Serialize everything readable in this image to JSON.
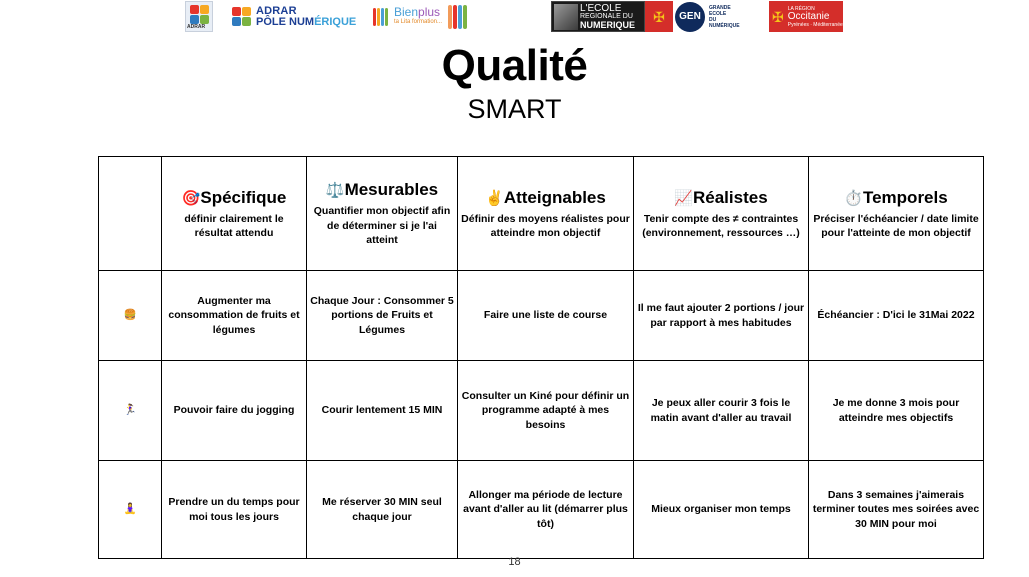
{
  "logos": {
    "adrar_small": "ADRAR",
    "pole_line1": "ADRAR",
    "pole_line2a": "PÔLE NUM",
    "pole_line2b": "ÉRIQUE",
    "bien_a": "Bien",
    "bien_b": "plus",
    "bien_sub": "ta Lita formation...",
    "ecole_l1": "L'ECOLE",
    "ecole_l2": "REGIONALE DU",
    "ecole_l3": "NUMERIQUE",
    "gen_mark": "GEN",
    "gen_l1": "GRANDE",
    "gen_l2": "ECOLE",
    "gen_l3": "DU",
    "gen_l4": "NUMÉRIQUE",
    "occ_l1": "LA RÉGION",
    "occ_l2": "Occitanie",
    "occ_l3": "Pyrénées · Méditerranée"
  },
  "title": "Qualité",
  "subtitle": "SMART",
  "page_number": "18",
  "table": {
    "headers": [
      {
        "emoji": "🎯",
        "title": "Spécifique",
        "desc": "définir clairement le résultat attendu"
      },
      {
        "emoji": "⚖️",
        "title": "Mesurables",
        "desc": "Quantifier mon objectif afin de déterminer si je l'ai atteint"
      },
      {
        "emoji": "✌️",
        "title": "Atteignables",
        "desc": "Définir des moyens réalistes pour atteindre mon objectif"
      },
      {
        "emoji": "📈",
        "title": "Réalistes",
        "desc": "Tenir compte des ≠ contraintes (environnement, ressources …)"
      },
      {
        "emoji": "⏱️",
        "title": "Temporels",
        "desc": "Préciser l'échéancier / date limite pour l'atteinte de mon objectif"
      }
    ],
    "rows": [
      {
        "icon": "🍔",
        "cells": [
          "Augmenter ma consommation de fruits et légumes",
          "Chaque Jour : Consommer 5 portions de Fruits et Légumes",
          "Faire une liste de course",
          "Il me faut ajouter 2 portions / jour par rapport à mes habitudes",
          "Échéancier : D'ici le 31Mai 2022"
        ]
      },
      {
        "icon": "🏃‍♀️",
        "cells": [
          "Pouvoir faire du jogging",
          "Courir lentement 15 MIN",
          "Consulter un Kiné pour définir un programme adapté à mes besoins",
          "Je peux aller courir 3 fois le matin avant d'aller au travail",
          "Je me donne 3 mois pour atteindre mes objectifs"
        ]
      },
      {
        "icon": "🧘‍♀️",
        "cells": [
          "Prendre un du temps pour moi tous les jours",
          "Me réserver 30 MIN seul chaque jour",
          "Allonger ma période de lecture avant d'aller au lit (démarrer plus tôt)",
          "Mieux organiser mon temps",
          "Dans 3 semaines j'aimerais terminer toutes mes soirées avec 30 MIN pour moi"
        ]
      }
    ]
  }
}
